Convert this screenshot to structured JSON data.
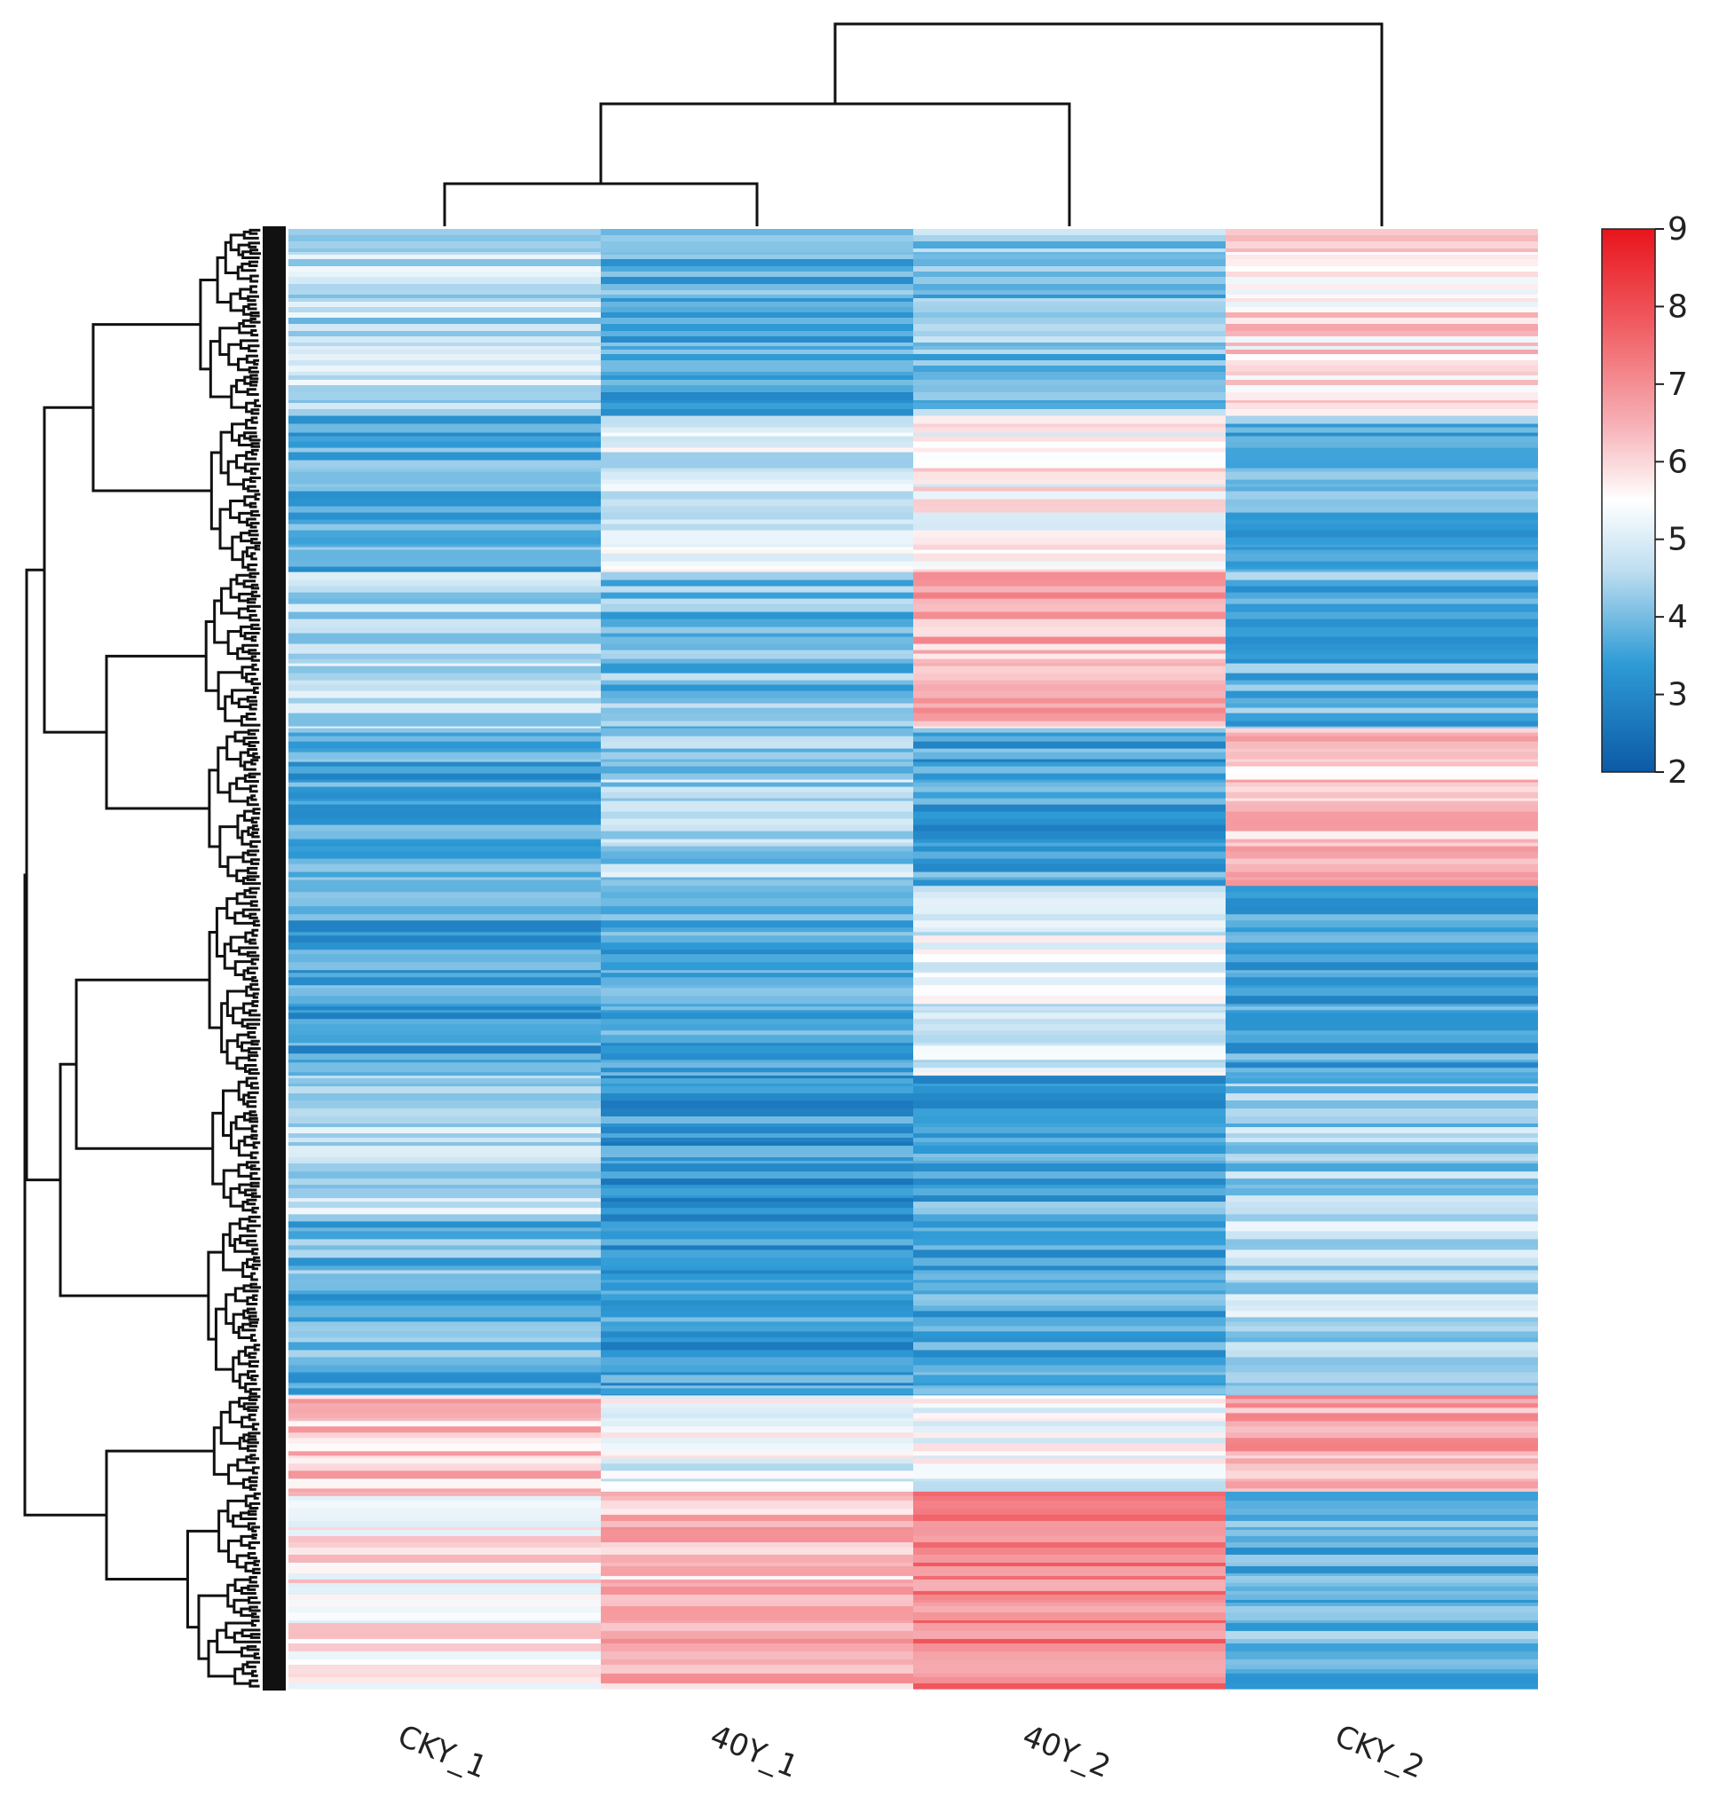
{
  "chart_data": {
    "type": "heatmap",
    "title": "",
    "columns": [
      "CKY_1",
      "40Y_1",
      "40Y_2",
      "CKY_2"
    ],
    "column_dendrogram": {
      "merges": [
        {
          "left": "CKY_1",
          "right": "40Y_1",
          "height": 2.8
        },
        {
          "left": "CKY_1+40Y_1",
          "right": "40Y_2",
          "height": 4.3
        },
        {
          "left": "CKY_1+40Y_1+40Y_2",
          "right": "CKY_2",
          "height": 5.8
        }
      ]
    },
    "row_dendrogram": "hierarchical clustering of ~400 rows (genes), unlabeled",
    "colorbar": {
      "min": 2,
      "max": 9,
      "ticks": [
        9,
        8,
        7,
        6,
        5,
        4,
        3,
        2
      ],
      "colors": {
        "low": "#0b5aa6",
        "mid_low": "#2f9bd6",
        "mid": "#ffffff",
        "mid_high": "#f29aa0",
        "high": "#e8141c"
      },
      "center": 5.5
    },
    "row_blocks": [
      {
        "rows": 0.128,
        "values": [
          4.6,
          3.7,
          4.1,
          5.9
        ]
      },
      {
        "rows": 0.107,
        "values": [
          3.6,
          5.0,
          5.6,
          3.7
        ]
      },
      {
        "rows": 0.107,
        "values": [
          4.6,
          4.0,
          6.5,
          3.8
        ]
      },
      {
        "rows": 0.108,
        "values": [
          3.6,
          4.4,
          3.5,
          6.2
        ]
      },
      {
        "rows": 0.13,
        "values": [
          3.5,
          3.6,
          5.1,
          3.6
        ]
      },
      {
        "rows": 0.095,
        "values": [
          4.6,
          3.3,
          3.6,
          4.3
        ]
      },
      {
        "rows": 0.124,
        "values": [
          3.8,
          3.4,
          3.6,
          4.6
        ]
      },
      {
        "rows": 0.066,
        "values": [
          6.2,
          5.2,
          5.3,
          6.6
        ]
      },
      {
        "rows": 0.135,
        "values": [
          5.8,
          6.3,
          7.2,
          3.8
        ]
      }
    ]
  }
}
